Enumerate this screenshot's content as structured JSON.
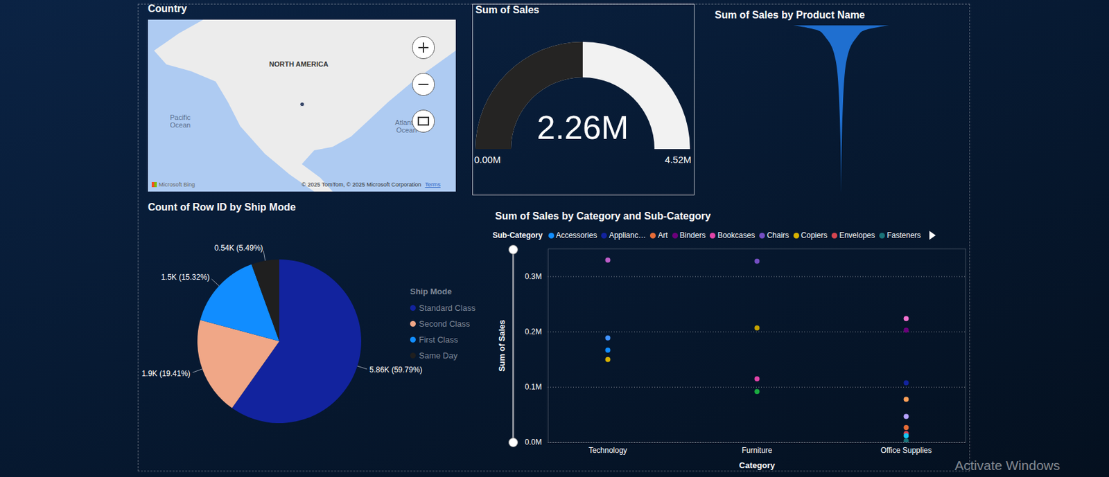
{
  "chart_data": [
    {
      "type": "map",
      "title": "Country",
      "labels": [
        "NORTH AMERICA",
        "Pacific Ocean",
        "Atlantic Ocean"
      ],
      "provider": "Microsoft Bing",
      "attribution": "© 2025 TomTom, © 2025 Microsoft Corporation",
      "terms": "Terms",
      "x": [
        -98.5
      ],
      "y": [
        39.5
      ],
      "color": "#3b4a6b",
      "xlim": [
        -170,
        -27
      ],
      "ylim": [
        0,
        77.5
      ],
      "tick_labels": false
    },
    {
      "type": "gauge",
      "title": "Sum of Sales",
      "values": [
        2260000
      ],
      "value_labels": [
        "2.26M"
      ],
      "ylim": [
        0,
        4520000
      ],
      "yticks": [
        {
          "value": 0,
          "label": "0.00M"
        },
        {
          "value": 4520000,
          "label": "4.52M"
        }
      ],
      "colors": [
        "#252423",
        "#f2f2f2"
      ]
    },
    {
      "type": "funnel",
      "title": "Sum of Sales by Product Name",
      "values": [
        61600,
        27500,
        23400,
        19000,
        15000,
        12000,
        10000,
        8500,
        7200,
        6200,
        5400,
        4800,
        4300,
        3900,
        3500,
        3200,
        2900,
        2600,
        2400,
        2200,
        2000,
        1800,
        1600,
        1450,
        1300,
        1150,
        1000,
        880,
        760,
        650,
        550,
        460,
        380,
        310,
        250,
        190,
        140,
        100,
        60,
        30
      ],
      "color": "#1f6fd0",
      "xlim": [
        -55000,
        55000
      ],
      "tick_labels": false
    },
    {
      "type": "pie",
      "title": "Count of Row ID by Ship Mode",
      "legend_title": "Ship Mode",
      "categories": [
        "Standard Class",
        "Second Class",
        "First Class",
        "Same Day"
      ],
      "values": [
        5860,
        1900,
        1500,
        540
      ],
      "value_labels": [
        "5.86K (59.79%)",
        "1.9K (19.41%)",
        "1.5K (15.32%)",
        "0.54K (5.49%)"
      ],
      "colors": [
        "#12239e",
        "#f0a787",
        "#118dff",
        "#1f1f1f"
      ],
      "data_labels": true,
      "legend": "right"
    },
    {
      "type": "scatter",
      "title": "Sum of Sales by Category and Sub-Category",
      "legend_title": "Sub-Category",
      "x_label": "Category",
      "y_label": "Sum of Sales",
      "categories": [
        "Technology",
        "Furniture",
        "Office Supplies"
      ],
      "series": [
        {
          "name": "Accessories",
          "color": "#118dff",
          "values": [
            167000,
            null,
            null
          ]
        },
        {
          "name": "Applianc…",
          "color": "#12239e",
          "values": [
            null,
            null,
            108000
          ]
        },
        {
          "name": "Art",
          "color": "#e66c37",
          "values": [
            null,
            null,
            27000
          ]
        },
        {
          "name": "Binders",
          "color": "#6b007b",
          "values": [
            null,
            null,
            203000
          ]
        },
        {
          "name": "Bookcases",
          "color": "#e044a7",
          "values": [
            null,
            115000,
            null
          ]
        },
        {
          "name": "Chairs",
          "color": "#744ec2",
          "values": [
            null,
            328000,
            null
          ]
        },
        {
          "name": "Copiers",
          "color": "#d9b300",
          "values": [
            150000,
            null,
            null
          ]
        },
        {
          "name": "Envelopes",
          "color": "#d64550",
          "values": [
            null,
            null,
            16000
          ]
        },
        {
          "name": "Fasteners",
          "color": "#197278",
          "values": [
            null,
            null,
            3000
          ]
        },
        {
          "name": null,
          "color": "#1aab40",
          "values": [
            null,
            92000,
            null
          ]
        },
        {
          "name": null,
          "color": "#15c6f4",
          "values": [
            null,
            null,
            12000
          ]
        },
        {
          "name": null,
          "color": "#4092ff",
          "values": [
            189000,
            null,
            null
          ]
        },
        {
          "name": null,
          "color": "#ffa058",
          "values": [
            null,
            null,
            78000
          ]
        },
        {
          "name": null,
          "color": "#be5dc9",
          "values": [
            330000,
            null,
            null
          ]
        },
        {
          "name": null,
          "color": "#f472d0",
          "values": [
            null,
            null,
            224000
          ]
        },
        {
          "name": null,
          "color": "#b5a1ff",
          "values": [
            null,
            null,
            47000
          ]
        },
        {
          "name": null,
          "color": "#c4a200",
          "values": [
            null,
            207000,
            null
          ]
        }
      ],
      "ylim": [
        0,
        350000
      ],
      "yticks": [
        {
          "value": 0,
          "label": "0.0M"
        },
        {
          "value": 100000,
          "label": "0.1M"
        },
        {
          "value": 200000,
          "label": "0.2M"
        },
        {
          "value": 300000,
          "label": "0.3M"
        }
      ],
      "grid": true,
      "legend": "top"
    }
  ],
  "watermark": "Activate Windows"
}
